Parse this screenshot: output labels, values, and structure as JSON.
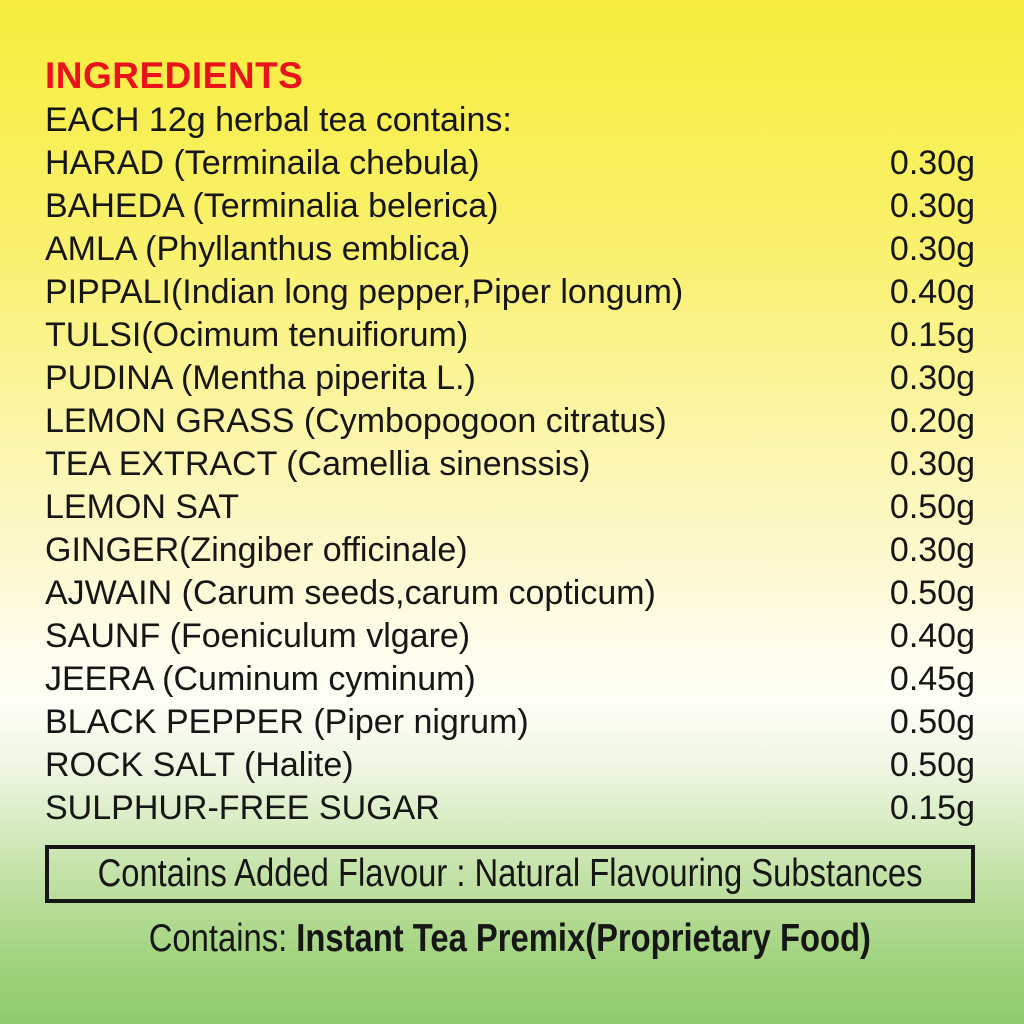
{
  "heading": "INGREDIENTS",
  "subheading": "EACH 12g herbal tea contains:",
  "ingredients": [
    {
      "name": "HARAD (Terminaila chebula)",
      "amount": "0.30g"
    },
    {
      "name": "BAHEDA (Terminalia belerica)",
      "amount": "0.30g"
    },
    {
      "name": "AMLA (Phyllanthus emblica)",
      "amount": "0.30g"
    },
    {
      "name": "PIPPALI(Indian long pepper,Piper longum)",
      "amount": "0.40g"
    },
    {
      "name": "TULSI(Ocimum tenuifiorum)",
      "amount": "0.15g"
    },
    {
      "name": "PUDINA (Mentha piperita L.)",
      "amount": "0.30g"
    },
    {
      "name": "LEMON GRASS (Cymbopogoon citratus)",
      "amount": "0.20g"
    },
    {
      "name": "TEA EXTRACT (Camellia sinenssis)",
      "amount": "0.30g"
    },
    {
      "name": "LEMON SAT",
      "amount": "0.50g"
    },
    {
      "name": "GINGER(Zingiber officinale)",
      "amount": "0.30g"
    },
    {
      "name": "AJWAIN (Carum seeds,carum copticum)",
      "amount": "0.50g"
    },
    {
      "name": "SAUNF (Foeniculum vlgare)",
      "amount": "0.40g"
    },
    {
      "name": "JEERA (Cuminum cyminum)",
      "amount": "0.45g"
    },
    {
      "name": "BLACK PEPPER (Piper nigrum)",
      "amount": "0.50g"
    },
    {
      "name": "ROCK SALT (Halite)",
      "amount": "0.50g"
    },
    {
      "name": "SULPHUR-FREE SUGAR",
      "amount": "0.15g"
    }
  ],
  "flavour_note": "Contains Added Flavour : Natural Flavouring Substances",
  "contains": {
    "prefix": "Contains: ",
    "product": "Instant Tea Premix(Proprietary Food)"
  },
  "colors": {
    "heading_red": "#e9141b",
    "text_black": "#161616",
    "bg_top_yellow": "#f5ec3e",
    "bg_mid_white": "#fdfef6",
    "bg_bottom_green": "#90cb6e",
    "box_border": "#161616"
  }
}
